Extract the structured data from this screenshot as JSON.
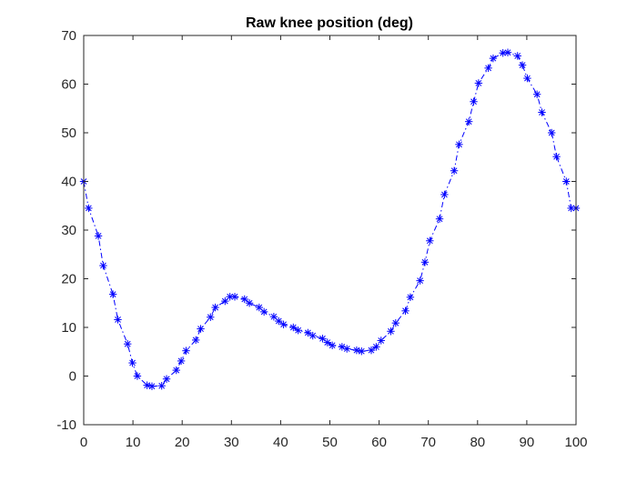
{
  "chart_data": {
    "type": "line",
    "title": "Raw knee position (deg)",
    "xlabel": "",
    "ylabel": "",
    "xlim": [
      0,
      100
    ],
    "ylim": [
      -10,
      70
    ],
    "x_ticks": [
      0,
      10,
      20,
      30,
      40,
      50,
      60,
      70,
      80,
      90,
      100
    ],
    "y_ticks": [
      -10,
      0,
      10,
      20,
      30,
      40,
      50,
      60,
      70
    ],
    "grid": false,
    "line_style": "dash-dot",
    "marker": "asterisk",
    "colors": {
      "series": "#0000ff",
      "axes": "#262626",
      "background": "#ffffff"
    },
    "series": [
      {
        "x": [
          0,
          0.99,
          2.97,
          3.96,
          5.94,
          6.93,
          8.91,
          9.9,
          10.89,
          12.87,
          13.86,
          15.84,
          16.83,
          18.81,
          19.8,
          20.79,
          22.77,
          23.76,
          25.74,
          26.73,
          28.71,
          29.7,
          30.69,
          32.67,
          33.66,
          35.64,
          36.63,
          38.61,
          39.6,
          40.59,
          42.57,
          43.56,
          45.54,
          46.53,
          48.51,
          49.5,
          50.49,
          52.47,
          53.46,
          55.44,
          56.43,
          58.41,
          59.41,
          60.4,
          62.38,
          63.37,
          65.35,
          66.34,
          68.32,
          69.31,
          70.3,
          72.28,
          73.27,
          75.25,
          76.24,
          78.22,
          79.21,
          80.2,
          82.18,
          83.17,
          85.15,
          86.14,
          88.12,
          89.11,
          90.1,
          92.08,
          93.07,
          95.05,
          96.04,
          98.02,
          99.01,
          100
        ],
        "y": [
          40.0,
          34.5,
          28.8,
          22.7,
          16.8,
          11.6,
          6.6,
          2.7,
          0.0,
          -1.9,
          -2.1,
          -2.0,
          -0.6,
          1.2,
          3.1,
          5.2,
          7.4,
          9.7,
          12.1,
          14.1,
          15.4,
          16.3,
          16.3,
          15.8,
          15.0,
          14.1,
          13.2,
          12.2,
          11.3,
          10.6,
          10.0,
          9.4,
          8.9,
          8.3,
          7.7,
          6.9,
          6.3,
          6.0,
          5.6,
          5.3,
          5.1,
          5.3,
          6.0,
          7.3,
          9.2,
          10.9,
          13.4,
          16.2,
          19.6,
          23.4,
          27.8,
          32.3,
          37.3,
          42.2,
          47.6,
          52.3,
          56.4,
          60.2,
          63.3,
          65.3,
          66.4,
          66.5,
          65.8,
          63.9,
          61.2,
          57.9,
          54.2,
          50.0,
          45.1,
          40.0,
          34.5,
          34.5
        ]
      }
    ]
  }
}
